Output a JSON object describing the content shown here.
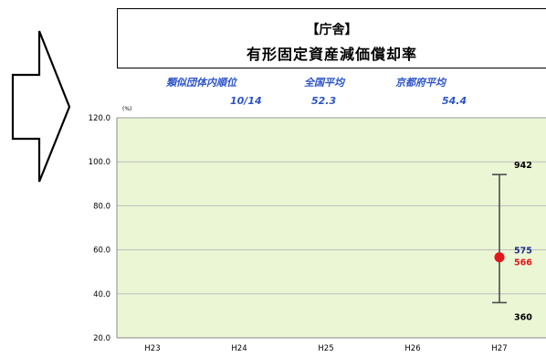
{
  "title_line1": "【庁舎】",
  "title_line2": "有形固定資産減価償却率",
  "stats": [
    {
      "label": "類似団体内順位",
      "value": "10/14"
    },
    {
      "label": "全国平均",
      "value": "52.3"
    },
    {
      "label": "京都府平均",
      "value": "54.4"
    }
  ],
  "colors": {
    "plot_bg": "#ebf6d4",
    "accent_blue": "#2d54c8",
    "point_red": "#e5161a",
    "bar": "#4d4d4d"
  },
  "icon": "right-arrow-icon",
  "chart_data": {
    "type": "scatter",
    "ylabel": "(%)",
    "ylim": [
      20,
      120
    ],
    "y_ticks": [
      "120.0",
      "100.0",
      "80.0",
      "60.0",
      "40.0",
      "20.0"
    ],
    "categories": [
      "H23",
      "H24",
      "H25",
      "H26",
      "H27"
    ],
    "grid": true,
    "points": [
      {
        "category": "H27",
        "value": 56.6,
        "label": "566",
        "max": 94.2,
        "max_label": "942",
        "min": 36.0,
        "min_label": "360",
        "avg": 57.5,
        "avg_label": "575"
      }
    ]
  }
}
